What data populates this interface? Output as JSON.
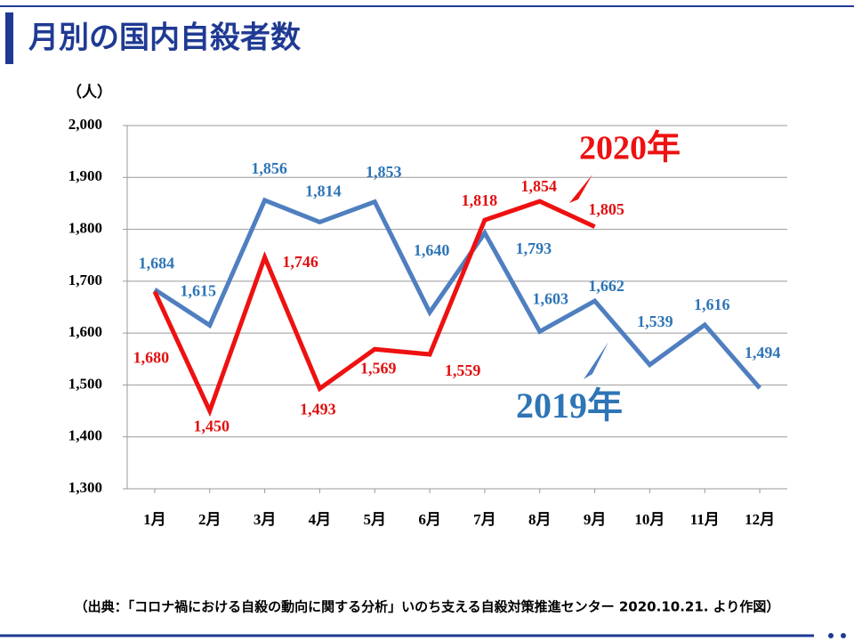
{
  "chart_data": {
    "type": "line",
    "title": "月別の国内自殺者数",
    "y_label": "（人）",
    "annotations": [
      "2020年",
      "2019年"
    ],
    "source": "（出典：「コロナ禍における自殺の動向に関する分析」いのち支える自殺対策推進センター 2020.10.21. より作図）",
    "categories": [
      "1月",
      "2月",
      "3月",
      "4月",
      "5月",
      "6月",
      "7月",
      "8月",
      "9月",
      "10月",
      "11月",
      "12月"
    ],
    "series": [
      {
        "name": "2019年",
        "color": "#4f7fc0",
        "label_color": "#2e75b6",
        "values": [
          1684,
          1615,
          1856,
          1814,
          1853,
          1640,
          1793,
          1603,
          1662,
          1539,
          1616,
          1494
        ],
        "value_labels": [
          "1,684",
          "1,615",
          "1,856",
          "1,814",
          "1,853",
          "1,640",
          "1,793",
          "1,603",
          "1,662",
          "1,539",
          "1,616",
          "1,494"
        ]
      },
      {
        "name": "2020年",
        "color": "#ee1111",
        "label_color": "#e01010",
        "values": [
          1680,
          1450,
          1746,
          1493,
          1569,
          1559,
          1818,
          1854,
          1805,
          null,
          null,
          null
        ],
        "value_labels": [
          "1,680",
          "1,450",
          "1,746",
          "1,493",
          "1,569",
          "1,559",
          "1,818",
          "1,854",
          "1,805",
          null,
          null,
          null
        ]
      }
    ],
    "ylim": [
      1300,
      2000
    ],
    "yticks": [
      {
        "value": 1300,
        "label": "1,300"
      },
      {
        "value": 1400,
        "label": "1,400"
      },
      {
        "value": 1500,
        "label": "1,500"
      },
      {
        "value": 1600,
        "label": "1,600"
      },
      {
        "value": 1700,
        "label": "1,700"
      },
      {
        "value": 1800,
        "label": "1,800"
      },
      {
        "value": 1900,
        "label": "1,900"
      },
      {
        "value": 2000,
        "label": "2,000"
      }
    ],
    "grid": true
  }
}
